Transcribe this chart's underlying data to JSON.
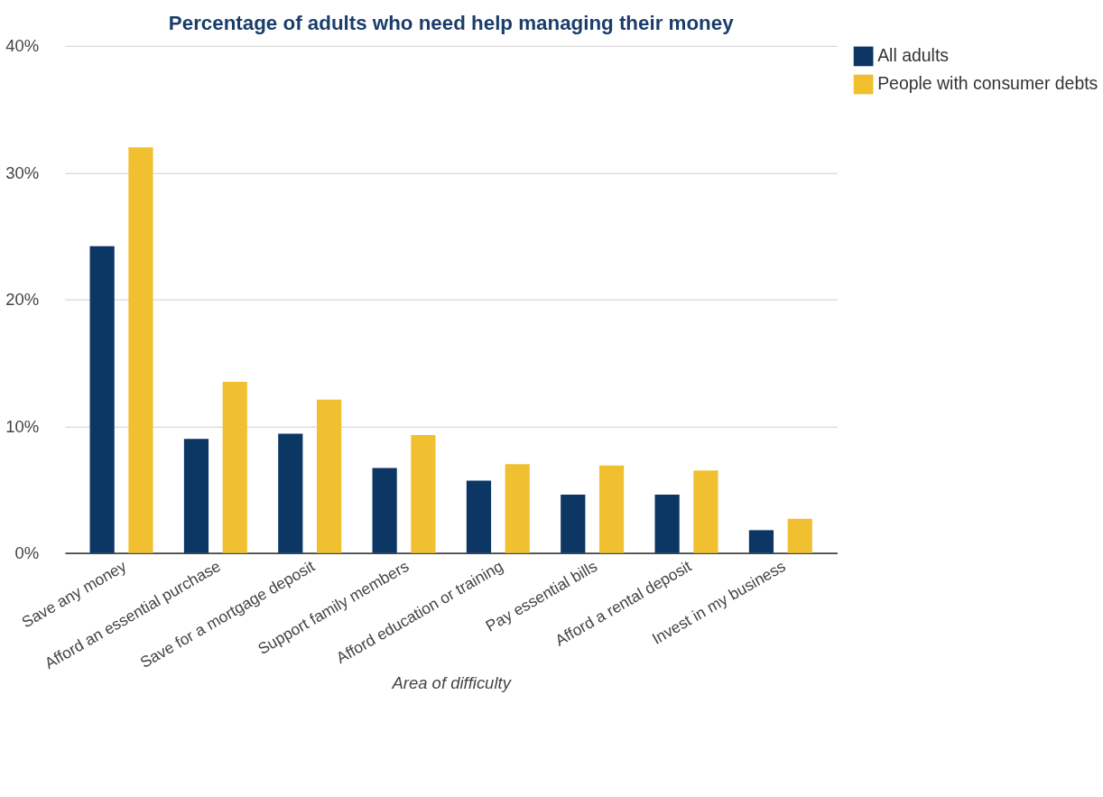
{
  "chart_data": {
    "type": "bar",
    "title": "Percentage of adults who need help managing their money",
    "xlabel": "Area of difficulty",
    "categories": [
      "Save any money",
      "Afford an essential purchase",
      "Save for a mortgage deposit",
      "Support family members",
      "Afford education or training",
      "Pay essential bills",
      "Afford a rental deposit",
      "Invest in my business"
    ],
    "series": [
      {
        "name": "All adults",
        "color": "#0c3764",
        "values": [
          24.2,
          9.0,
          9.4,
          6.7,
          5.7,
          4.6,
          4.6,
          1.8
        ]
      },
      {
        "name": "People with consumer debts",
        "color": "#f0c030",
        "values": [
          32,
          13.5,
          12.1,
          9.3,
          7.0,
          6.9,
          6.5,
          2.7
        ]
      }
    ],
    "ylim": [
      0,
      40
    ],
    "yticks": [
      {
        "value": 0,
        "label": "0%"
      },
      {
        "value": 10,
        "label": "10%"
      },
      {
        "value": 20,
        "label": "20%"
      },
      {
        "value": 30,
        "label": "30%"
      },
      {
        "value": 40,
        "label": "40%"
      }
    ],
    "grid": "y",
    "legend": "top right"
  }
}
